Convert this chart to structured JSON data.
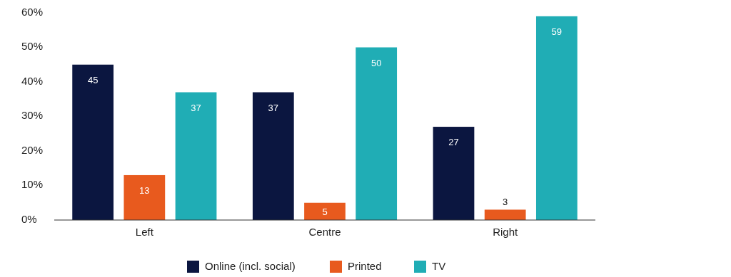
{
  "chart_data": {
    "type": "bar",
    "categories": [
      "Left",
      "Centre",
      "Right"
    ],
    "series": [
      {
        "name": "Online (incl. social)",
        "color": "#0b1640",
        "values": [
          45,
          37,
          27
        ]
      },
      {
        "name": "Printed",
        "color": "#e85a1e",
        "values": [
          13,
          5,
          3
        ]
      },
      {
        "name": "TV",
        "color": "#20adb5",
        "values": [
          37,
          50,
          59
        ]
      }
    ],
    "ylim": [
      0,
      60
    ],
    "yticks": [
      {
        "value": 0,
        "label": "0%"
      },
      {
        "value": 10,
        "label": "10%"
      },
      {
        "value": 20,
        "label": "20%"
      },
      {
        "value": 30,
        "label": "30%"
      },
      {
        "value": 40,
        "label": "40%"
      },
      {
        "value": 50,
        "label": "50%"
      },
      {
        "value": 60,
        "label": "60%"
      }
    ],
    "data_labels": true,
    "legend": "bottom",
    "grid": false
  }
}
